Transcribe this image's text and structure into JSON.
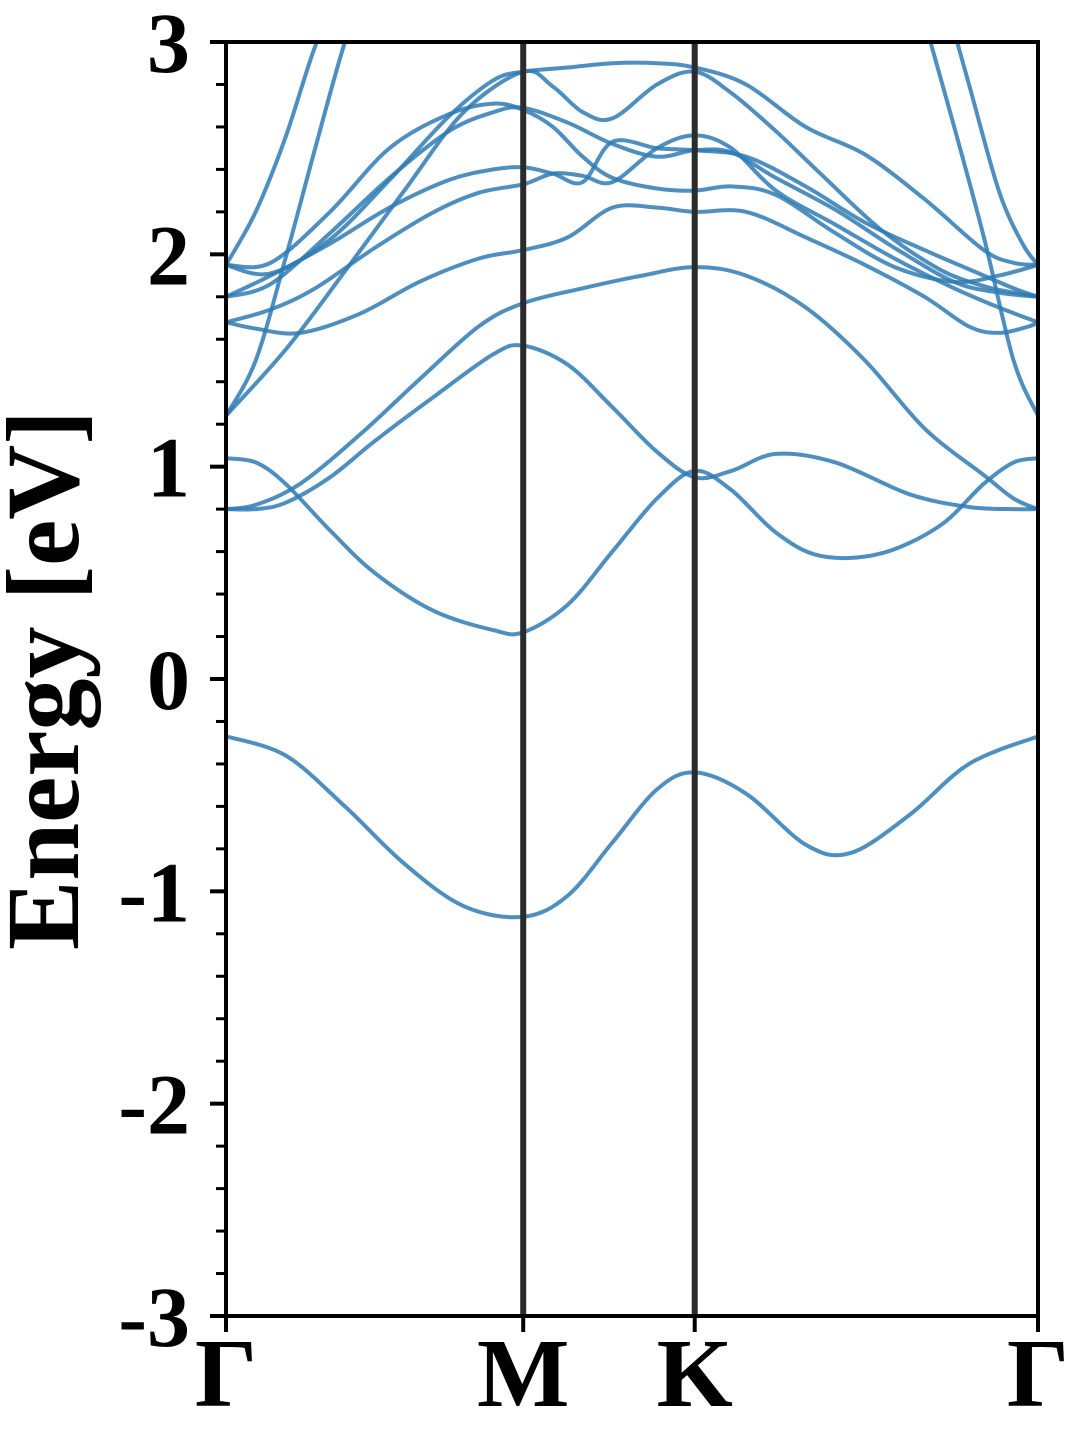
{
  "chart_data": {
    "type": "line",
    "title": "",
    "xlabel": "",
    "ylabel": "Energy [eV]",
    "ylim": [
      -3,
      3
    ],
    "y_ticks": [
      -3,
      -2,
      -1,
      0,
      1,
      2,
      3
    ],
    "y_tick_labels": [
      "-3",
      "-2",
      "-1",
      "0",
      "1",
      "2",
      "3"
    ],
    "y_minor_step": 0.2,
    "x_ticks": [
      0,
      1,
      1.577,
      2.732
    ],
    "x_tick_labels": [
      "Γ",
      "M",
      "K",
      "Γ"
    ],
    "xlim": [
      0,
      2.732
    ],
    "high_symmetry_lines": [
      1,
      1.577
    ],
    "grid": false,
    "line_color": "#2f7bb5",
    "vline_color": "#2b2b2b",
    "series": [
      {
        "x": [
          0,
          0.2,
          0.4,
          0.6,
          0.8,
          1.0,
          1.15,
          1.3,
          1.45,
          1.577,
          1.75,
          1.95,
          2.1,
          2.3,
          2.5,
          2.732
        ],
        "y": [
          -0.27,
          -0.36,
          -0.6,
          -0.87,
          -1.07,
          -1.12,
          -1.02,
          -0.77,
          -0.52,
          -0.44,
          -0.54,
          -0.78,
          -0.82,
          -0.64,
          -0.4,
          -0.27
        ]
      },
      {
        "x": [
          0,
          0.1,
          0.2,
          0.35,
          0.5,
          0.7,
          0.9,
          1.0,
          1.15,
          1.3,
          1.45,
          1.577,
          1.7,
          1.85,
          2.0,
          2.2,
          2.4,
          2.55,
          2.65,
          2.732
        ],
        "y": [
          1.04,
          1.02,
          0.92,
          0.7,
          0.5,
          0.32,
          0.23,
          0.22,
          0.35,
          0.6,
          0.85,
          0.98,
          0.89,
          0.69,
          0.58,
          0.59,
          0.72,
          0.92,
          1.02,
          1.04
        ]
      },
      {
        "x": [
          0,
          0.1,
          0.2,
          0.35,
          0.5,
          0.7,
          0.9,
          1.0,
          1.15,
          1.3,
          1.45,
          1.577,
          1.7,
          1.85,
          2.05,
          2.3,
          2.5,
          2.65,
          2.732
        ],
        "y": [
          0.8,
          0.8,
          0.83,
          0.95,
          1.12,
          1.33,
          1.53,
          1.57,
          1.48,
          1.28,
          1.07,
          0.95,
          0.98,
          1.06,
          1.02,
          0.87,
          0.81,
          0.8,
          0.8
        ]
      },
      {
        "x": [
          0,
          0.1,
          0.25,
          0.45,
          0.65,
          0.85,
          1.0,
          1.2,
          1.4,
          1.577,
          1.75,
          1.95,
          2.15,
          2.35,
          2.55,
          2.65,
          2.732
        ],
        "y": [
          0.8,
          0.82,
          0.92,
          1.15,
          1.41,
          1.66,
          1.77,
          1.84,
          1.9,
          1.94,
          1.9,
          1.75,
          1.5,
          1.18,
          0.96,
          0.85,
          0.8
        ]
      },
      {
        "x": [
          0,
          0.1,
          0.25,
          0.45,
          0.65,
          0.85,
          1.0,
          1.15,
          1.3,
          1.45,
          1.577,
          1.75,
          1.95,
          2.15,
          2.35,
          2.5,
          2.6,
          2.7,
          2.732
        ],
        "y": [
          1.68,
          1.65,
          1.63,
          1.72,
          1.87,
          1.98,
          2.02,
          2.08,
          2.22,
          2.22,
          2.2,
          2.2,
          2.08,
          1.95,
          1.8,
          1.66,
          1.63,
          1.66,
          1.68
        ]
      },
      {
        "x": [
          0,
          0.15,
          0.3,
          0.5,
          0.7,
          0.85,
          1.0,
          1.1,
          1.2,
          1.3,
          1.45,
          1.577,
          1.7,
          1.85,
          2.05,
          2.25,
          2.45,
          2.6,
          2.732
        ],
        "y": [
          1.68,
          1.74,
          1.84,
          2.03,
          2.2,
          2.29,
          2.33,
          2.38,
          2.37,
          2.34,
          2.5,
          2.56,
          2.5,
          2.3,
          2.14,
          1.98,
          1.84,
          1.75,
          1.68
        ]
      },
      {
        "x": [
          0,
          0.15,
          0.35,
          0.55,
          0.75,
          0.9,
          1.0,
          1.1,
          1.2,
          1.3,
          1.45,
          1.577,
          1.75,
          1.95,
          2.15,
          2.35,
          2.55,
          2.65,
          2.732
        ],
        "y": [
          1.8,
          1.9,
          2.05,
          2.22,
          2.35,
          2.4,
          2.41,
          2.38,
          2.34,
          2.53,
          2.5,
          2.49,
          2.46,
          2.32,
          2.15,
          2.02,
          1.9,
          1.84,
          1.8
        ]
      },
      {
        "x": [
          0,
          0.15,
          0.35,
          0.55,
          0.75,
          0.9,
          1.0,
          1.15,
          1.3,
          1.45,
          1.577,
          1.7,
          1.85,
          2.05,
          2.25,
          2.45,
          2.6,
          2.732
        ],
        "y": [
          1.8,
          1.86,
          2.1,
          2.36,
          2.58,
          2.67,
          2.69,
          2.62,
          2.52,
          2.46,
          2.49,
          2.48,
          2.36,
          2.21,
          2.03,
          1.87,
          1.82,
          1.8
        ]
      },
      {
        "x": [
          0,
          0.15,
          0.35,
          0.55,
          0.75,
          0.9,
          1.0,
          1.1,
          1.2,
          1.3,
          1.45,
          1.577,
          1.7,
          1.85,
          2.05,
          2.25,
          2.45,
          2.6,
          2.732
        ],
        "y": [
          1.95,
          1.96,
          2.2,
          2.5,
          2.66,
          2.71,
          2.68,
          2.6,
          2.46,
          2.36,
          2.31,
          2.3,
          2.32,
          2.28,
          2.1,
          1.94,
          1.87,
          1.9,
          1.95
        ]
      },
      {
        "x": [
          0,
          0.15,
          0.35,
          0.55,
          0.75,
          0.9,
          1.0,
          1.15,
          1.3,
          1.45,
          1.577,
          1.75,
          1.95,
          2.15,
          2.35,
          2.55,
          2.65,
          2.732
        ],
        "y": [
          1.95,
          1.91,
          2.07,
          2.35,
          2.65,
          2.82,
          2.86,
          2.88,
          2.9,
          2.9,
          2.88,
          2.8,
          2.6,
          2.47,
          2.26,
          2.02,
          1.96,
          1.95
        ]
      },
      {
        "x": [
          0,
          0.2,
          0.4,
          0.6,
          0.8,
          1.0,
          1.1,
          1.2,
          1.3,
          1.45,
          1.577,
          1.7,
          1.85,
          2.0,
          2.2,
          2.4,
          2.55,
          2.65,
          2.732
        ],
        "y": [
          1.24,
          1.55,
          1.92,
          2.3,
          2.67,
          2.86,
          2.79,
          2.67,
          2.64,
          2.8,
          2.86,
          2.76,
          2.58,
          2.38,
          2.12,
          1.93,
          1.85,
          1.82,
          1.8
        ]
      },
      {
        "x": [
          0,
          0.1,
          0.2,
          0.3,
          0.4,
          0.5
        ],
        "y": [
          1.95,
          2.2,
          2.55,
          2.98,
          3.3,
          3.6
        ]
      },
      {
        "x": [
          0,
          0.1,
          0.2,
          0.3,
          0.4,
          0.5
        ],
        "y": [
          1.24,
          1.5,
          1.98,
          2.5,
          3.0,
          3.4
        ]
      },
      {
        "x": [
          2.35,
          2.45,
          2.55,
          2.65,
          2.732
        ],
        "y": [
          3.1,
          2.6,
          2.08,
          1.5,
          1.24
        ]
      },
      {
        "x": [
          2.4,
          2.5,
          2.6,
          2.68,
          2.732
        ],
        "y": [
          3.3,
          2.8,
          2.3,
          2.05,
          1.95
        ]
      }
    ]
  }
}
